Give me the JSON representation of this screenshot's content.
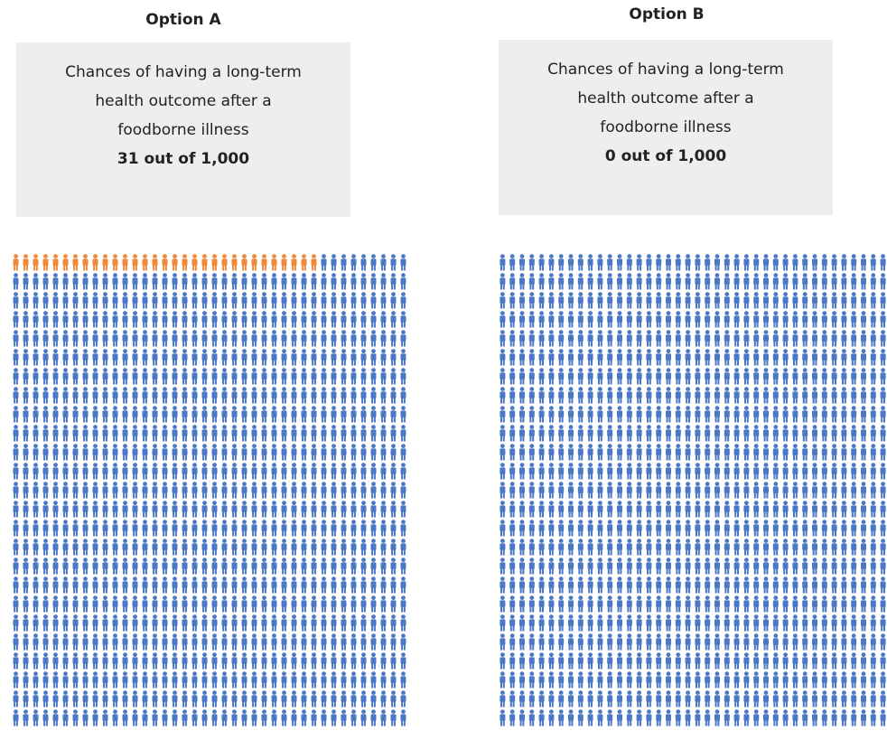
{
  "chart_data": [
    {
      "type": "icon-array",
      "title": "Option A",
      "description_lines": [
        "Chances of having a long-term",
        "health outcome after a",
        "foodborne illness"
      ],
      "count_label": "31 out of 1,000",
      "highlighted": 31,
      "total": 1000,
      "columns": 40,
      "rows": 25,
      "colors": {
        "highlight": "#f0883a",
        "base": "#4a78c6"
      }
    },
    {
      "type": "icon-array",
      "title": "Option B",
      "description_lines": [
        "Chances of having a long-term",
        "health outcome after a",
        "foodborne illness"
      ],
      "count_label": "0 out of 1,000",
      "highlighted": 0,
      "total": 1000,
      "columns": 40,
      "rows": 25,
      "colors": {
        "highlight": "#f0883a",
        "base": "#4a78c6"
      }
    }
  ]
}
